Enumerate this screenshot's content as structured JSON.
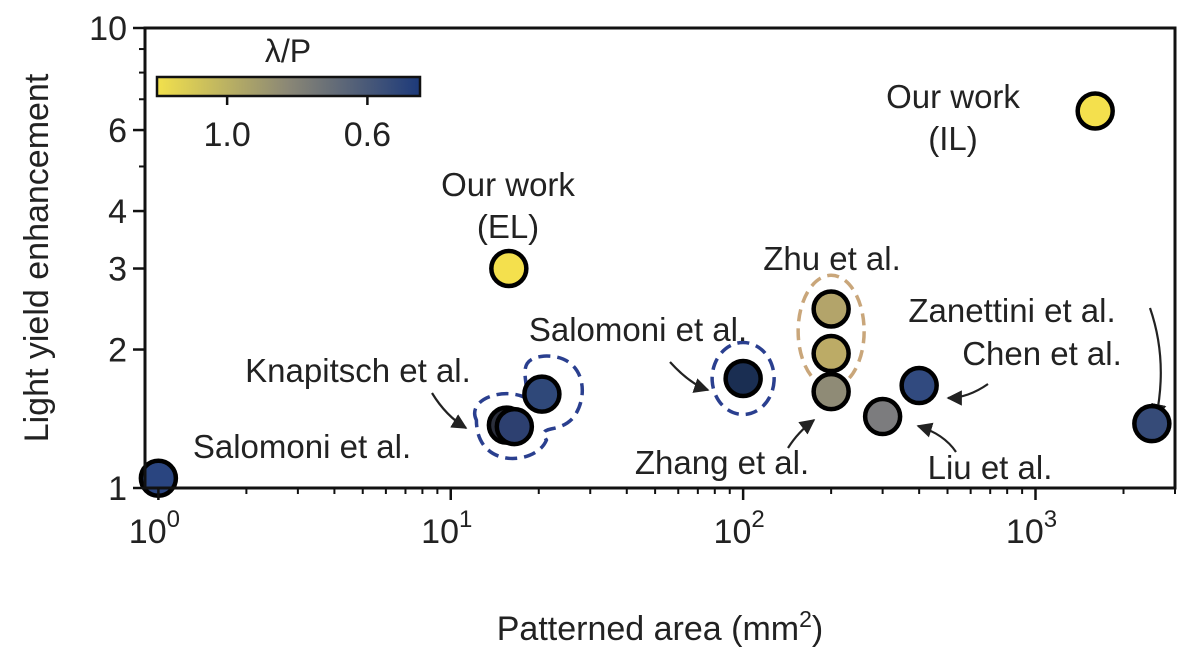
{
  "chart_data": {
    "type": "scatter",
    "xlabel": "Patterned area (mm",
    "xlabel_sup": "2",
    "xlabel_end": ")",
    "ylabel": "Light yield enhancement",
    "xscale": "log",
    "yscale": "log",
    "xlim": [
      0.9,
      3000
    ],
    "ylim": [
      1,
      10
    ],
    "x_ticks": [
      {
        "value": 1,
        "base": "10",
        "exp": "0"
      },
      {
        "value": 10,
        "base": "10",
        "exp": "1"
      },
      {
        "value": 100,
        "base": "10",
        "exp": "2"
      },
      {
        "value": 1000,
        "base": "10",
        "exp": "3"
      }
    ],
    "y_ticks": [
      {
        "value": 1,
        "label": "1"
      },
      {
        "value": 2,
        "label": "2"
      },
      {
        "value": 3,
        "label": "3"
      },
      {
        "value": 4,
        "label": "4"
      },
      {
        "value": 6,
        "label": "6"
      },
      {
        "value": 10,
        "label": "10"
      }
    ],
    "y_minor_ticks": [
      5,
      7,
      8,
      9
    ],
    "grid": false,
    "colorbar": {
      "title": "λ/P",
      "placement": "top-left",
      "colors": [
        "#f2e14c",
        "#8a8776",
        "#1d3a7a"
      ],
      "ticks": [
        {
          "value": 1.0,
          "label": "1.0"
        },
        {
          "value": 0.6,
          "label": "0.6"
        }
      ],
      "range": [
        1.2,
        0.45
      ]
    },
    "points": [
      {
        "x": 1.0,
        "y": 1.05,
        "color": "#2a4580"
      },
      {
        "x": 15.5,
        "y": 1.37,
        "color": "#2b2f3c"
      },
      {
        "x": 16.5,
        "y": 1.36,
        "color": "#2d4070"
      },
      {
        "x": 20.5,
        "y": 1.6,
        "color": "#2f4879"
      },
      {
        "x": 15.8,
        "y": 3.0,
        "color": "#f4e04d"
      },
      {
        "x": 100,
        "y": 1.73,
        "color": "#1a2e52"
      },
      {
        "x": 200,
        "y": 2.45,
        "color": "#b3a46a"
      },
      {
        "x": 200,
        "y": 1.96,
        "color": "#bcab66"
      },
      {
        "x": 200,
        "y": 1.62,
        "color": "#8f8b76"
      },
      {
        "x": 300,
        "y": 1.43,
        "color": "#7c7c7e"
      },
      {
        "x": 400,
        "y": 1.67,
        "color": "#314a7f"
      },
      {
        "x": 2500,
        "y": 1.38,
        "color": "#364b78"
      },
      {
        "x": 1600,
        "y": 6.6,
        "color": "#f4e04d"
      }
    ],
    "groups": [
      {
        "members_x": [
          15.5,
          16.5,
          20.5
        ],
        "color": "#2a3f8f",
        "style": "dashed"
      },
      {
        "members_x": [
          100
        ],
        "color": "#2a3f8f",
        "style": "dashed"
      },
      {
        "members_x": [
          200
        ],
        "color": "#c9a67a",
        "style": "dashed"
      }
    ],
    "annotations": [
      {
        "id": "salomoni-1",
        "lines": [
          "Salomoni et al."
        ]
      },
      {
        "id": "knapitsch",
        "lines": [
          "Knapitsch et al."
        ]
      },
      {
        "id": "our-el",
        "lines": [
          "Our work",
          "(EL)"
        ]
      },
      {
        "id": "salomoni-2",
        "lines": [
          "Salomoni et al."
        ]
      },
      {
        "id": "zhu",
        "lines": [
          "Zhu et al."
        ]
      },
      {
        "id": "zhang",
        "lines": [
          "Zhang et al."
        ]
      },
      {
        "id": "zanettini",
        "lines": [
          "Zanettini et al."
        ]
      },
      {
        "id": "chen",
        "lines": [
          "Chen et al."
        ]
      },
      {
        "id": "liu",
        "lines": [
          "Liu et al."
        ]
      },
      {
        "id": "our-il",
        "lines": [
          "Our work",
          "(IL)"
        ]
      }
    ]
  }
}
